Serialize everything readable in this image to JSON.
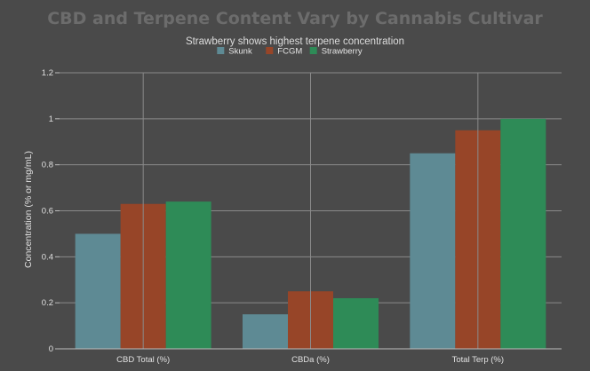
{
  "chart_data": {
    "type": "bar",
    "title": "CBD and Terpene Content Vary by Cannabis Cultivar",
    "subtitle": "Strawberry shows highest terpene concentration",
    "xlabel": "",
    "ylabel": "Concentration (% or mg/mL)",
    "categories": [
      "CBD Total (%)",
      "CBDa (%)",
      "Total Terp (%)"
    ],
    "series": [
      {
        "name": "Skunk",
        "values": [
          0.5,
          0.15,
          0.85
        ],
        "color": "#5e8a94"
      },
      {
        "name": "FCGM",
        "values": [
          0.63,
          0.25,
          0.95
        ],
        "color": "#974528"
      },
      {
        "name": "Strawberry",
        "values": [
          0.64,
          0.22,
          1.0
        ],
        "color": "#2e8b57"
      }
    ],
    "ylim": [
      0,
      1.2
    ],
    "yticks": [
      "0",
      "0.2",
      "0.4",
      "0.6",
      "0.8",
      "1",
      "1.2"
    ],
    "grid": true,
    "legend_position": "top-center",
    "background_color": "#4a4a4a",
    "grid_color": "#8a8a8a"
  }
}
